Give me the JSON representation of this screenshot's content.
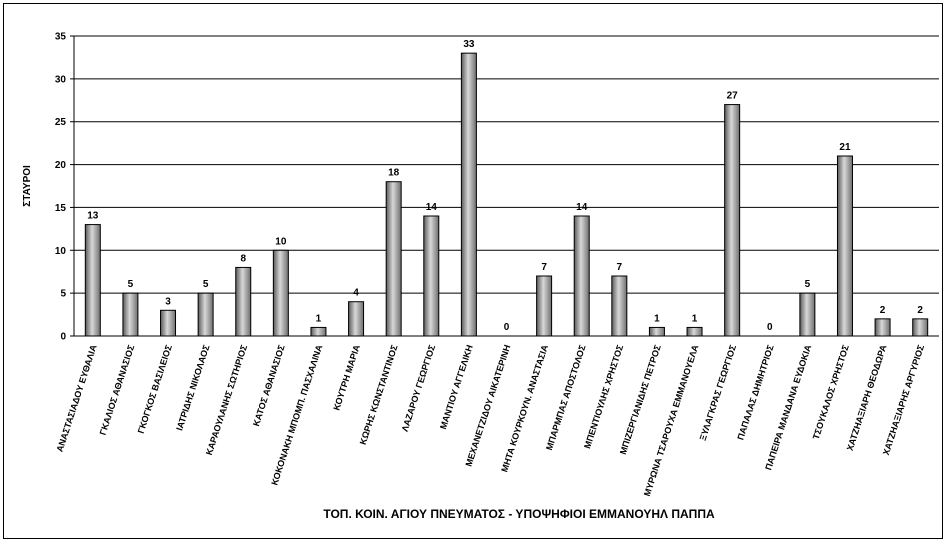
{
  "chart_data": {
    "type": "bar",
    "title": "ΤΟΠ. ΚΟΙΝ. ΑΓΙΟΥ ΠΝΕΥΜΑΤΟΣ  - ΥΠΟΨΗΦΙΟΙ ΕΜΜΑΝΟΥΗΛ ΠΑΠΠΑ",
    "xlabel": "",
    "ylabel": "ΣΤΑΥΡΟΙ",
    "ylim": [
      0,
      35
    ],
    "yticks": [
      0,
      5,
      10,
      15,
      20,
      25,
      30,
      35
    ],
    "grid": true,
    "bar_color": "#9a9a9a",
    "categories": [
      "ΑΝΑΣΤΑΣΙΑΔΟΥ ΕΥΘΑΛΙΑ",
      "ΓΚΑΛΙΟΣ ΑΘΑΝΑΣΙΟΣ",
      "ΓΚΟΓΚΟΣ ΒΑΣΙΛΕΙΟΣ",
      "ΙΑΤΡΙΔΗΣ ΝΙΚΟΛΑΟΣ",
      "ΚΑΡΑΟΥΛΑΝΗΣ ΣΩΤΗΡΙΟΣ",
      "ΚΑΤΟΣ ΑΘΑΝΑΣΙΟΣ",
      "ΚΟΚΟΝΑΚΗ ΜΠΟΜΠ. ΠΑΣΧΑΛΙΝΑ",
      "ΚΟΥΤΡΗ ΜΑΡΙΑ",
      "ΚΩΡΗΣ ΚΩΝΣΤΑΝΤΙΝΟΣ",
      "ΛΑΖΑΡΟΥ ΓΕΩΡΓΙΟΣ",
      "ΜΑΝΤΙΟΥ ΑΓΓΕΛΙΚΗ",
      "ΜΕΧΑΝΕΤΖΙΔΟΥ ΑΙΚΑΤΕΡΙΝΗ",
      "ΜΗΤΑ ΚΟΥΡΚΟΥΝ. ΑΝΑΣΤΑΣΙΑ",
      "ΜΠΑΡΜΠΑΣ ΑΠΟΣΤΟΛΟΣ",
      "ΜΠΕΝΤΙΟΥΛΗΣ ΧΡΗΣΤΟΣ",
      "ΜΠΙΖΕΡΓΙΑΝΙΔΗΣ ΠΕΤΡΟΣ",
      "ΜΥΡΩΝΑ ΤΣΑΡΟΥΧΑ ΕΜΜΑΝΟΥΕΛΑ",
      "ΞΥΛΑΓΚΡΑΣ ΓΕΩΡΓΙΟΣ",
      "ΠΑΠΑΛΑΣ ΔΗΜΗΤΡΙΟΣ",
      "ΠΑΠΕΙΡΑ ΜΑΝΔΑΝΑ ΕΥΔΟΚΙΑ",
      "ΤΣΟΥΚΑΛΟΣ ΧΡΗΣΤΟΣ",
      "ΧΑΤΖΗΑΞΙΑΡΗ ΘΕΟΔΩΡΑ",
      "ΧΑΤΖΗΑΞΙΑΡΗΣ ΑΡΓΥΡΙΟΣ"
    ],
    "values": [
      13,
      5,
      3,
      5,
      8,
      10,
      1,
      4,
      18,
      14,
      33,
      0,
      7,
      14,
      7,
      1,
      1,
      27,
      0,
      5,
      21,
      2,
      2
    ]
  }
}
